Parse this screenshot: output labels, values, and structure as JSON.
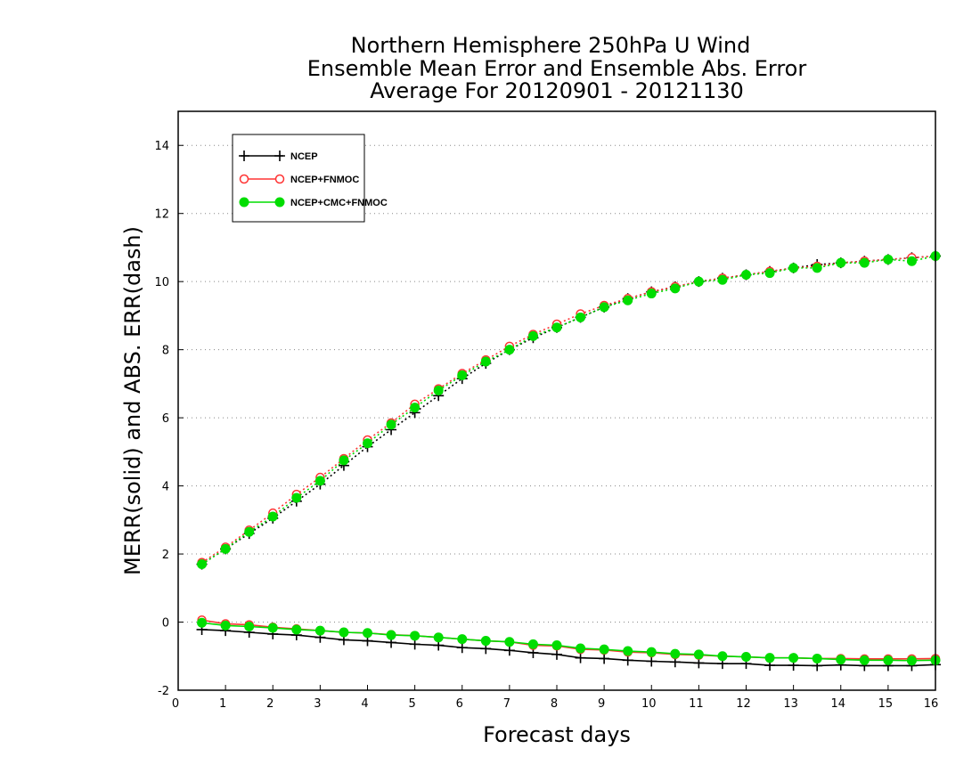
{
  "chart_data": {
    "type": "line",
    "title": [
      "Northern Hemisphere 250hPa U Wind",
      "Ensemble Mean Error and Ensemble Abs. Error",
      "Average For 20120901 - 20121130"
    ],
    "xlabel": "Forecast days",
    "ylabel": "MERR(solid) and ABS. ERR(dash)",
    "xlim": [
      0,
      16
    ],
    "ylim": [
      -2,
      15
    ],
    "x_ticks": [
      0,
      1,
      2,
      3,
      4,
      5,
      6,
      7,
      8,
      9,
      10,
      11,
      12,
      13,
      14,
      15,
      16
    ],
    "y_ticks": [
      -2,
      0,
      2,
      4,
      6,
      8,
      10,
      12,
      14
    ],
    "grid": "horizontal dotted",
    "legend_position": "top-left",
    "x": [
      0.5,
      1.0,
      1.5,
      2.0,
      2.5,
      3.0,
      3.5,
      4.0,
      4.5,
      5.0,
      5.5,
      6.0,
      6.5,
      7.0,
      7.5,
      8.0,
      8.5,
      9.0,
      9.5,
      10.0,
      10.5,
      11.0,
      11.5,
      12.0,
      12.5,
      13.0,
      13.5,
      14.0,
      14.5,
      15.0,
      15.5,
      16.0
    ],
    "series": [
      {
        "name": "NCEP",
        "color": "#000000",
        "marker": "plus",
        "merr": [
          -0.22,
          -0.25,
          -0.3,
          -0.35,
          -0.38,
          -0.45,
          -0.52,
          -0.55,
          -0.6,
          -0.65,
          -0.68,
          -0.75,
          -0.78,
          -0.83,
          -0.9,
          -0.95,
          -1.05,
          -1.07,
          -1.12,
          -1.15,
          -1.17,
          -1.2,
          -1.22,
          -1.22,
          -1.27,
          -1.27,
          -1.28,
          -1.26,
          -1.28,
          -1.28,
          -1.28,
          -1.25
        ],
        "abs_err": [
          1.7,
          2.15,
          2.6,
          3.05,
          3.55,
          4.05,
          4.6,
          5.15,
          5.65,
          6.15,
          6.65,
          7.15,
          7.6,
          8.0,
          8.35,
          8.65,
          8.95,
          9.25,
          9.5,
          9.7,
          9.85,
          10.0,
          10.1,
          10.2,
          10.3,
          10.4,
          10.5,
          10.55,
          10.6,
          10.65,
          10.7,
          10.75
        ]
      },
      {
        "name": "NCEP+FNMOC",
        "color": "#ff3333",
        "marker": "open-circle",
        "merr": [
          0.06,
          -0.05,
          -0.08,
          -0.15,
          -0.2,
          -0.25,
          -0.3,
          -0.32,
          -0.37,
          -0.4,
          -0.45,
          -0.5,
          -0.55,
          -0.58,
          -0.68,
          -0.7,
          -0.8,
          -0.82,
          -0.88,
          -0.9,
          -0.95,
          -0.97,
          -1.0,
          -1.02,
          -1.05,
          -1.05,
          -1.07,
          -1.07,
          -1.08,
          -1.08,
          -1.08,
          -1.07
        ],
        "abs_err": [
          1.75,
          2.2,
          2.7,
          3.2,
          3.75,
          4.25,
          4.8,
          5.35,
          5.85,
          6.4,
          6.85,
          7.3,
          7.7,
          8.1,
          8.45,
          8.75,
          9.05,
          9.3,
          9.5,
          9.7,
          9.85,
          10.0,
          10.1,
          10.2,
          10.3,
          10.4,
          10.45,
          10.55,
          10.6,
          10.65,
          10.7,
          10.75
        ]
      },
      {
        "name": "NCEP+CMC+FNMOC",
        "color": "#00dd00",
        "marker": "filled-circle",
        "merr": [
          -0.02,
          -0.1,
          -0.13,
          -0.17,
          -0.22,
          -0.25,
          -0.3,
          -0.32,
          -0.38,
          -0.4,
          -0.45,
          -0.5,
          -0.55,
          -0.58,
          -0.65,
          -0.68,
          -0.77,
          -0.8,
          -0.85,
          -0.88,
          -0.93,
          -0.95,
          -1.0,
          -1.02,
          -1.05,
          -1.05,
          -1.07,
          -1.1,
          -1.12,
          -1.12,
          -1.13,
          -1.12
        ],
        "abs_err": [
          1.7,
          2.15,
          2.65,
          3.1,
          3.65,
          4.15,
          4.75,
          5.25,
          5.8,
          6.3,
          6.8,
          7.25,
          7.65,
          8.0,
          8.4,
          8.65,
          8.95,
          9.25,
          9.45,
          9.65,
          9.8,
          10.0,
          10.05,
          10.2,
          10.25,
          10.4,
          10.4,
          10.55,
          10.55,
          10.65,
          10.6,
          10.75
        ]
      }
    ]
  }
}
